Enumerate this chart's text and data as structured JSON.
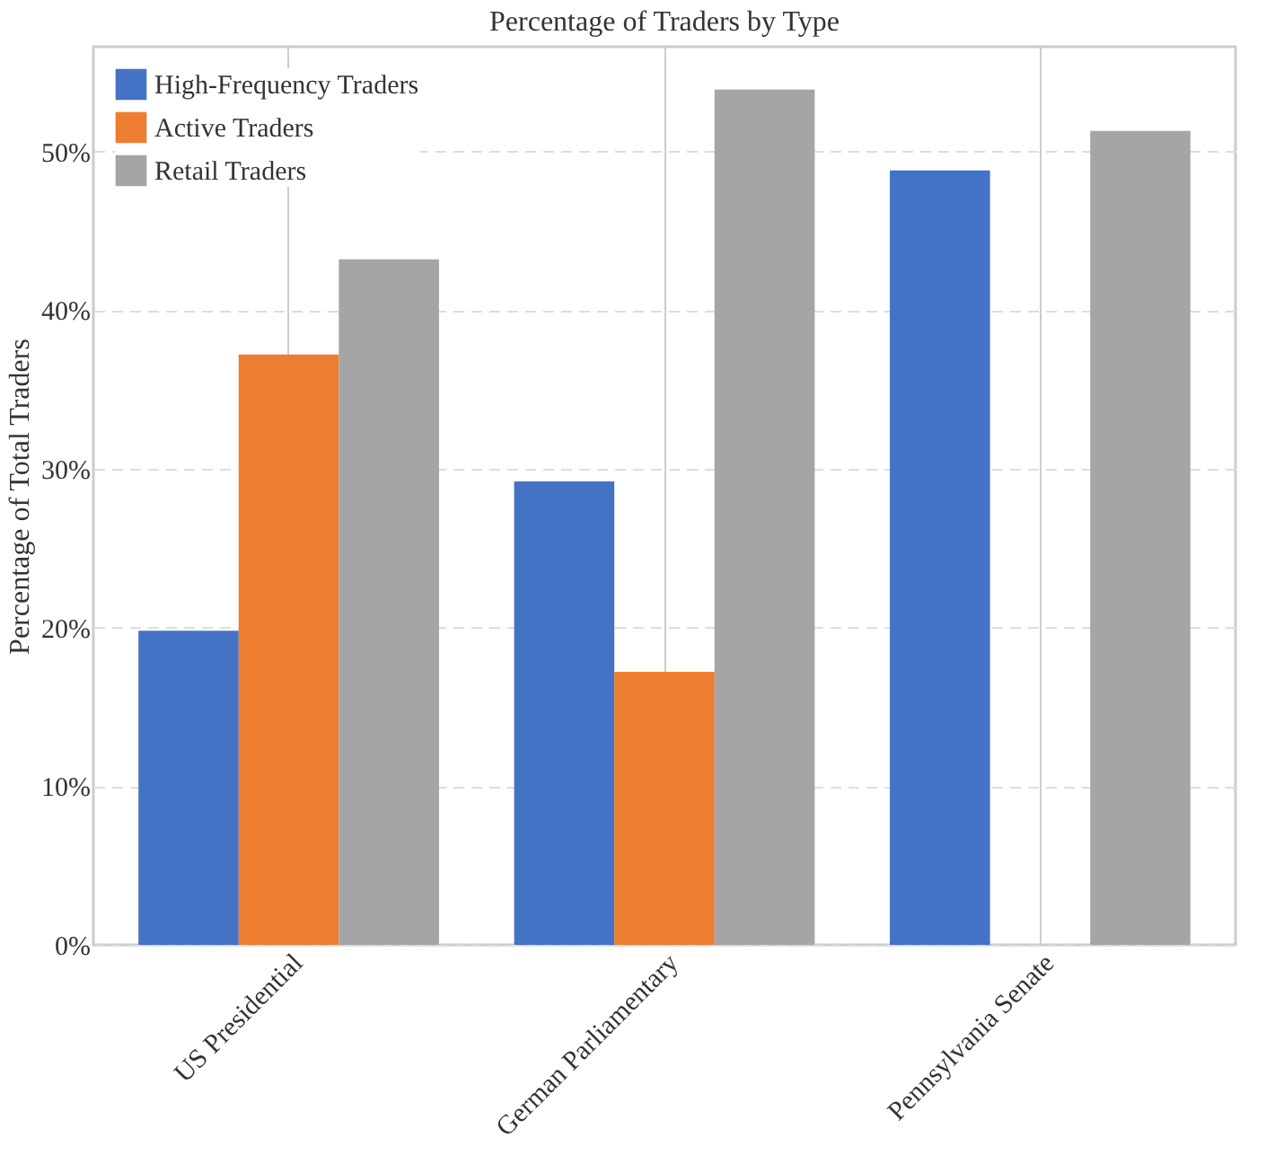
{
  "chart_data": {
    "type": "bar",
    "title": "Percentage of Traders by Type",
    "ylabel": "Percentage of Total Traders",
    "categories": [
      "US Presidential",
      "German Parliamentary",
      "Pennsylvania Senate"
    ],
    "series": [
      {
        "name": "High-Frequency Traders",
        "color": "#4472c4",
        "values": [
          19.8,
          29.2,
          48.8
        ]
      },
      {
        "name": "Active Traders",
        "color": "#ed7d31",
        "values": [
          37.2,
          17.2,
          0
        ]
      },
      {
        "name": "Retail Traders",
        "color": "#a5a5a5",
        "values": [
          43.2,
          53.9,
          51.3
        ]
      }
    ],
    "ylim": [
      0,
      56.6
    ],
    "yticks": [
      {
        "value": 0,
        "label": "0%"
      },
      {
        "value": 10,
        "label": "10%"
      },
      {
        "value": 20,
        "label": "20%"
      },
      {
        "value": 30,
        "label": "30%"
      },
      {
        "value": 40,
        "label": "40%"
      },
      {
        "value": 50,
        "label": "50%"
      }
    ],
    "grid": true,
    "legend": "top left"
  }
}
